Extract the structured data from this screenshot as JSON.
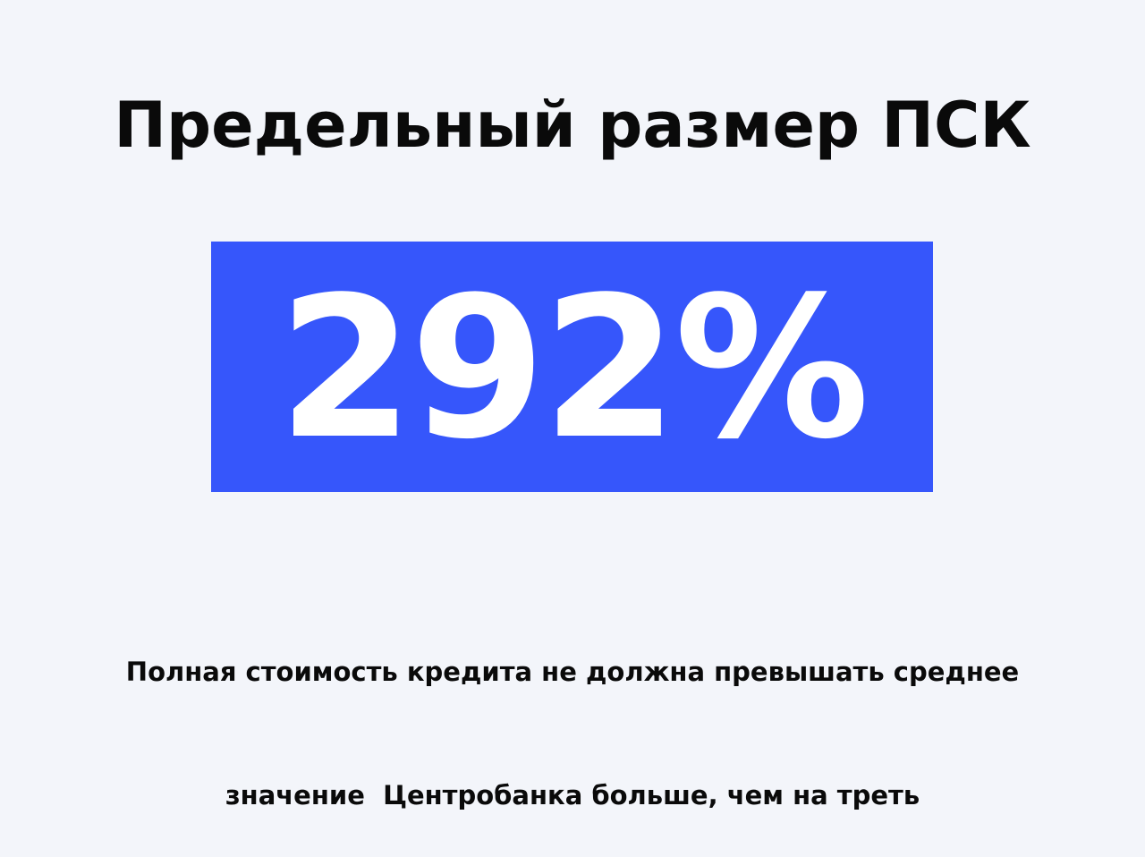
{
  "title": "Предельный размер ПСК",
  "highlight": {
    "value": "292%",
    "background_color": "#3656fb",
    "text_color": "#ffffff"
  },
  "subtitle": {
    "line1": "Полная стоимость кредита не должна превышать среднее",
    "line2": "значение  Центробанка больше, чем на треть"
  }
}
